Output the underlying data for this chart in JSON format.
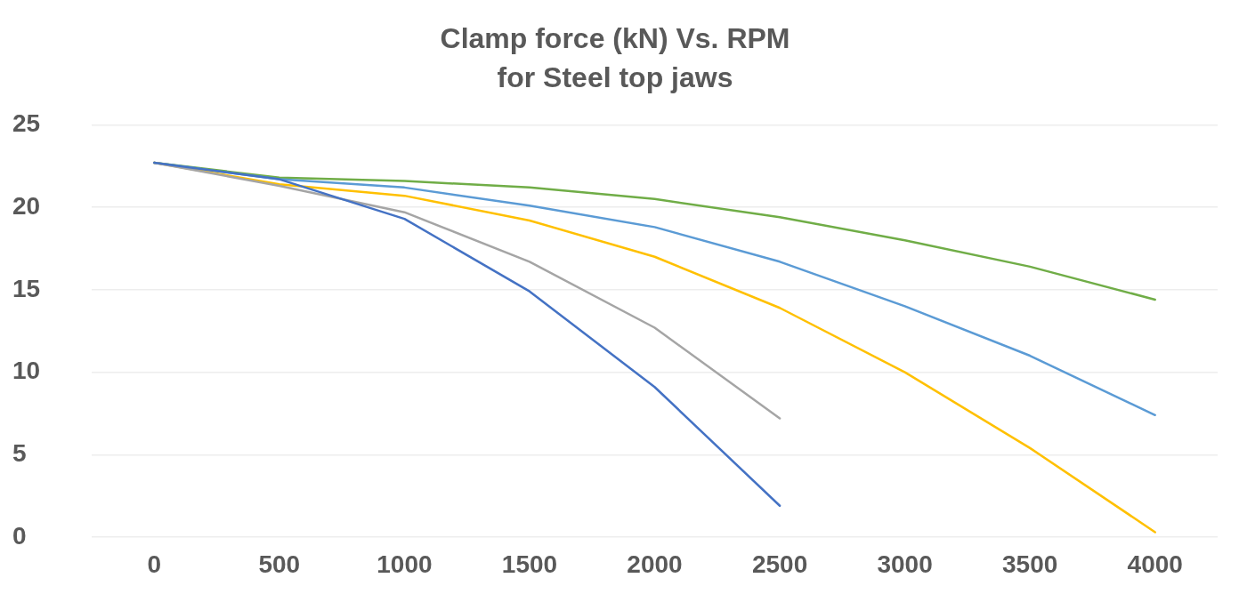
{
  "chart_data": {
    "type": "line",
    "title": "Clamp force (kN) Vs. RPM\nfor Steel top jaws",
    "categories": [
      "0",
      "500",
      "1000",
      "1500",
      "2000",
      "2500",
      "3000",
      "3500",
      "4000"
    ],
    "series": [
      {
        "color": "#4472c4",
        "values": [
          22.7,
          21.7,
          19.3,
          14.9,
          9.1,
          1.9,
          null,
          null,
          null
        ]
      },
      {
        "color": "#a5a5a5",
        "values": [
          22.7,
          21.3,
          19.7,
          16.7,
          12.7,
          7.2,
          null,
          null,
          null
        ]
      },
      {
        "color": "#ffc000",
        "values": [
          22.7,
          21.4,
          20.7,
          19.2,
          17.0,
          13.9,
          10.0,
          5.4,
          0.3
        ]
      },
      {
        "color": "#5b9bd5",
        "values": [
          22.7,
          21.7,
          21.2,
          20.1,
          18.8,
          16.7,
          14.0,
          11.0,
          7.4
        ]
      },
      {
        "color": "#70ad47",
        "values": [
          22.7,
          21.8,
          21.6,
          21.2,
          20.5,
          19.4,
          18.0,
          16.4,
          14.4
        ]
      }
    ],
    "ylim": [
      0,
      25
    ],
    "yticks": [
      0,
      5,
      10,
      15,
      20,
      25
    ],
    "grid": "y",
    "marker": "none",
    "line_style": "solid"
  }
}
